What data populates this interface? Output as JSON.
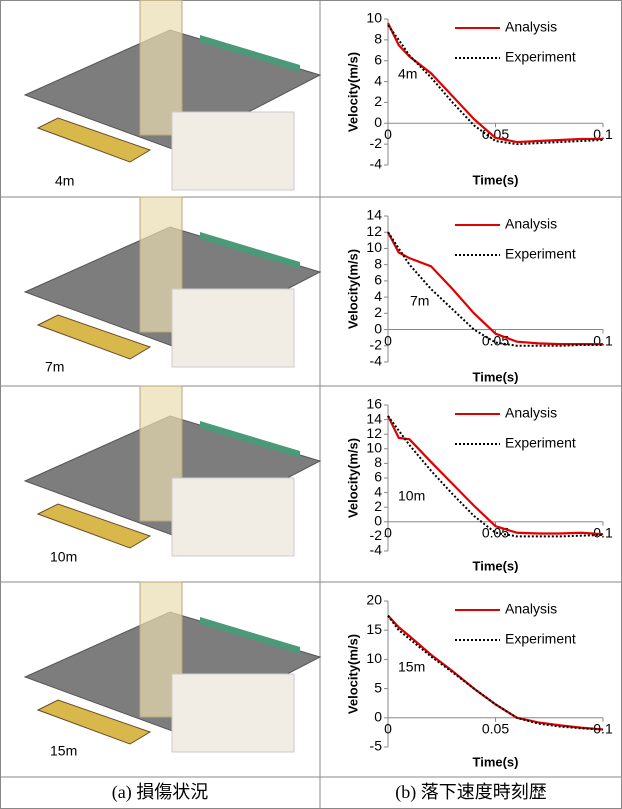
{
  "images": [
    {
      "label": "4m"
    },
    {
      "label": "7m"
    },
    {
      "label": "10m"
    },
    {
      "label": "15m"
    }
  ],
  "captions": [
    "(a) 損傷状況",
    "(b) 落下速度時刻歴"
  ],
  "chart_data": [
    {
      "type": "line",
      "annotation": "4m",
      "x_label": "Time(s)",
      "y_label": "Velocity(m/s)",
      "x": [
        0,
        0.005,
        0.01,
        0.02,
        0.03,
        0.04,
        0.05,
        0.06,
        0.07,
        0.08,
        0.09,
        0.1
      ],
      "series": [
        {
          "name": "Analysis",
          "color": "#e00000",
          "values": [
            9.6,
            7.5,
            6.4,
            4.8,
            2.6,
            0.4,
            -1.4,
            -1.8,
            -1.7,
            -1.6,
            -1.5,
            -1.5
          ]
        },
        {
          "name": "Experiment",
          "color": "#000000",
          "values": [
            9.4,
            8,
            6.5,
            4.4,
            2.0,
            -0.2,
            -1.7,
            -2.0,
            -1.9,
            -1.8,
            -1.7,
            -1.6
          ]
        }
      ],
      "xlim": [
        0,
        0.1
      ],
      "xticks": [
        0,
        0.05,
        0.1
      ],
      "ylim": [
        -4,
        10
      ],
      "yticks": [
        -4,
        -2,
        0,
        2,
        4,
        6,
        8,
        10
      ]
    },
    {
      "type": "line",
      "annotation": "7m",
      "x_label": "Time(s)",
      "y_label": "Velocity(m/s)",
      "x": [
        0,
        0.005,
        0.01,
        0.02,
        0.03,
        0.04,
        0.05,
        0.06,
        0.07,
        0.08,
        0.09,
        0.1
      ],
      "series": [
        {
          "name": "Analysis",
          "color": "#e00000",
          "values": [
            12,
            9.5,
            8.8,
            7.8,
            5,
            2,
            -0.5,
            -1.5,
            -1.7,
            -1.8,
            -1.8,
            -1.8
          ]
        },
        {
          "name": "Experiment",
          "color": "#000000",
          "values": [
            12,
            10,
            8,
            5,
            2.5,
            0,
            -1.6,
            -2,
            -2,
            -2,
            -1.9,
            -1.9
          ]
        }
      ],
      "xlim": [
        0,
        0.1
      ],
      "xticks": [
        0,
        0.05,
        0.1
      ],
      "ylim": [
        -4,
        14
      ],
      "yticks": [
        -4,
        -2,
        0,
        2,
        4,
        6,
        8,
        10,
        12,
        14
      ]
    },
    {
      "type": "line",
      "annotation": "10m",
      "x_label": "Time(s)",
      "y_label": "Velocity(m/s)",
      "x": [
        0,
        0.005,
        0.01,
        0.02,
        0.03,
        0.04,
        0.05,
        0.06,
        0.07,
        0.08,
        0.09,
        0.1
      ],
      "series": [
        {
          "name": "Analysis",
          "color": "#e00000",
          "values": [
            14.5,
            11.5,
            11.3,
            8.2,
            5.2,
            2.2,
            -0.6,
            -1.5,
            -1.6,
            -1.6,
            -1.5,
            -1.7
          ]
        },
        {
          "name": "Experiment",
          "color": "#000000",
          "values": [
            14.5,
            12.5,
            10.5,
            7,
            3.8,
            0.8,
            -1.5,
            -2,
            -2,
            -2,
            -1.9,
            -1.8
          ]
        }
      ],
      "xlim": [
        0,
        0.1
      ],
      "xticks": [
        0,
        0.05,
        0.1
      ],
      "ylim": [
        -4,
        16
      ],
      "yticks": [
        -4,
        -2,
        0,
        2,
        4,
        6,
        8,
        10,
        12,
        14,
        16
      ]
    },
    {
      "type": "line",
      "annotation": "15m",
      "x_label": "Time(s)",
      "y_label": "Velocity(m/s)",
      "x": [
        0,
        0.005,
        0.01,
        0.02,
        0.03,
        0.04,
        0.05,
        0.06,
        0.07,
        0.08,
        0.09,
        0.1
      ],
      "series": [
        {
          "name": "Analysis",
          "color": "#e00000",
          "values": [
            17.5,
            15.5,
            14,
            10.8,
            8,
            5,
            2.3,
            0,
            -0.8,
            -1.3,
            -1.7,
            -2
          ]
        },
        {
          "name": "Experiment",
          "color": "#000000",
          "values": [
            17.5,
            15,
            13.5,
            10.5,
            7.8,
            5,
            2.3,
            0,
            -1,
            -1.5,
            -1.8,
            -2
          ]
        }
      ],
      "xlim": [
        0,
        0.1
      ],
      "xticks": [
        0,
        0.05,
        0.1
      ],
      "ylim": [
        -5,
        20
      ],
      "yticks": [
        -5,
        0,
        5,
        10,
        15,
        20
      ]
    }
  ]
}
